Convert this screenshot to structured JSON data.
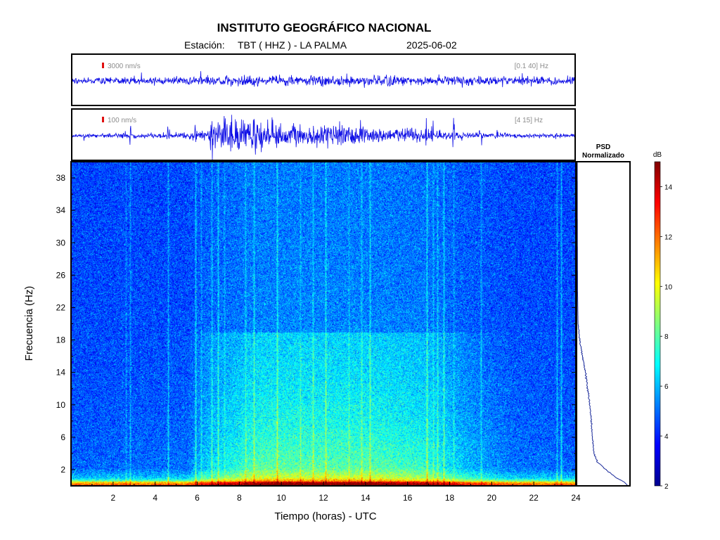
{
  "header": {
    "title": "INSTITUTO GEOGRÁFICO NACIONAL",
    "station_label": "Estación:",
    "station": "TBT ( HHZ ) - LA PALMA",
    "date": "2025-06-02"
  },
  "colors": {
    "trace": "#1010e6",
    "scale_marker": "#e01010",
    "annotation": "#8c8c8c",
    "psd_line": "#1a2a9a"
  },
  "chart_data": [
    {
      "type": "line",
      "name": "waveform-broadband",
      "scale_label": "3000 nm/s",
      "band_label": "[0.1 40] Hz",
      "x_range": [
        0,
        24
      ],
      "activity": [
        [
          0,
          0.15
        ],
        [
          6,
          0.2
        ],
        [
          12,
          0.22
        ],
        [
          18,
          0.2
        ],
        [
          24,
          0.15
        ]
      ],
      "spikes": [
        {
          "x": 23.9,
          "amp": 0.45
        }
      ]
    },
    {
      "type": "line",
      "name": "waveform-filtered",
      "scale_label": "100 nm/s",
      "band_label": "[4 15] Hz",
      "x_range": [
        0,
        24
      ],
      "activity": [
        [
          0,
          0.08
        ],
        [
          2,
          0.09
        ],
        [
          5,
          0.12
        ],
        [
          6.5,
          0.25
        ],
        [
          7,
          0.75
        ],
        [
          8.5,
          0.85
        ],
        [
          9.2,
          0.55
        ],
        [
          10,
          0.45
        ],
        [
          11,
          0.5
        ],
        [
          12,
          0.55
        ],
        [
          13,
          0.5
        ],
        [
          13.5,
          0.42
        ],
        [
          14.5,
          0.3
        ],
        [
          16,
          0.3
        ],
        [
          17,
          0.25
        ],
        [
          18,
          0.15
        ],
        [
          20,
          0.1
        ],
        [
          24,
          0.08
        ]
      ],
      "spikes": [
        {
          "x": 0.6,
          "amp": 0.3
        },
        {
          "x": 2.6,
          "amp": 0.6
        },
        {
          "x": 2.8,
          "amp": 0.4
        },
        {
          "x": 4.6,
          "amp": 0.9
        },
        {
          "x": 5.9,
          "amp": 0.5
        },
        {
          "x": 6.7,
          "amp": 0.95
        },
        {
          "x": 7.2,
          "amp": 0.9
        },
        {
          "x": 8.3,
          "amp": 0.9
        },
        {
          "x": 8.7,
          "amp": 0.8
        },
        {
          "x": 9.8,
          "amp": 0.8
        },
        {
          "x": 11.5,
          "amp": 0.5
        },
        {
          "x": 13.2,
          "amp": 0.9
        },
        {
          "x": 13.8,
          "amp": 0.7
        },
        {
          "x": 14.6,
          "amp": 0.55
        },
        {
          "x": 16.9,
          "amp": 0.95
        },
        {
          "x": 17.2,
          "amp": 0.95
        },
        {
          "x": 17.6,
          "amp": 0.9
        },
        {
          "x": 18.2,
          "amp": 0.75
        },
        {
          "x": 19.5,
          "amp": 0.6
        },
        {
          "x": 20.3,
          "amp": 0.35
        },
        {
          "x": 23.1,
          "amp": 0.3
        }
      ]
    },
    {
      "type": "heatmap",
      "name": "spectrogram",
      "xlabel": "Tiempo (horas) - UTC",
      "ylabel": "Frecuencia  (Hz)",
      "x_range": [
        0,
        24
      ],
      "y_range": [
        0,
        40
      ],
      "x_ticks": [
        2,
        4,
        6,
        8,
        10,
        12,
        14,
        16,
        18,
        20,
        22,
        24
      ],
      "y_ticks": [
        2,
        6,
        10,
        14,
        18,
        22,
        26,
        30,
        34,
        38
      ],
      "day_noise_profile": [
        [
          0,
          0
        ],
        [
          5.5,
          0.05
        ],
        [
          6.5,
          0.5
        ],
        [
          9,
          1
        ],
        [
          13,
          1
        ],
        [
          15,
          0.95
        ],
        [
          17,
          0.8
        ],
        [
          19,
          0.35
        ],
        [
          21,
          0.08
        ],
        [
          24,
          0
        ]
      ],
      "vertical_lines": [
        2.6,
        2.8,
        4.6,
        5.9,
        6.2,
        6.7,
        7.0,
        7.3,
        8.3,
        8.7,
        9.8,
        10.9,
        11.5,
        12.1,
        13.2,
        13.8,
        14.2,
        16.9,
        17.2,
        17.4,
        17.7,
        18.2,
        19.5,
        23.1,
        23.3
      ]
    },
    {
      "type": "line",
      "name": "psd",
      "title_lines": [
        "PSD",
        "Normalizado"
      ],
      "y_range": [
        0,
        40
      ],
      "profile": [
        [
          40,
          0
        ],
        [
          33,
          0.002
        ],
        [
          28,
          0.004
        ],
        [
          24,
          0.006
        ],
        [
          20,
          0.015
        ],
        [
          18,
          0.05
        ],
        [
          16,
          0.1
        ],
        [
          14,
          0.16
        ],
        [
          12,
          0.2
        ],
        [
          10,
          0.24
        ],
        [
          8,
          0.27
        ],
        [
          6,
          0.29
        ],
        [
          4,
          0.32
        ],
        [
          3,
          0.38
        ],
        [
          2,
          0.55
        ],
        [
          1,
          0.75
        ],
        [
          0.4,
          0.92
        ],
        [
          0,
          0.97
        ]
      ]
    },
    {
      "type": "heatmap",
      "name": "colorbar",
      "unit_label": "dB",
      "range": [
        2,
        15
      ],
      "ticks": [
        2,
        4,
        6,
        8,
        10,
        12,
        14
      ]
    }
  ]
}
